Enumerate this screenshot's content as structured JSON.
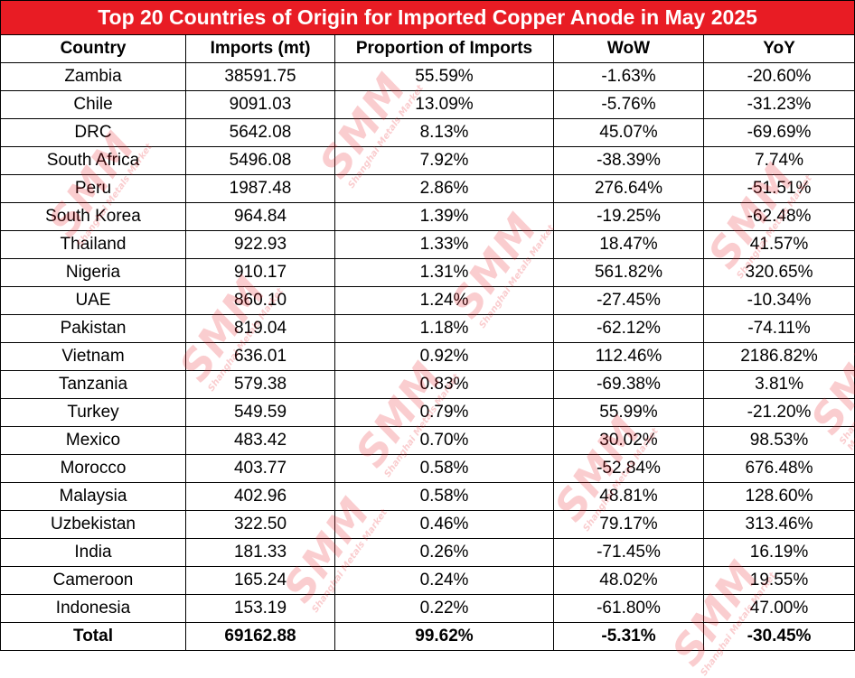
{
  "chart_data": {
    "type": "table",
    "title": "Top 20 Countries of Origin for Imported Copper Anode in May 2025",
    "columns": [
      "Country",
      "Imports (mt)",
      "Proportion of Imports",
      "WoW",
      "YoY"
    ],
    "rows": [
      [
        "Zambia",
        "38591.75",
        "55.59%",
        "-1.63%",
        "-20.60%"
      ],
      [
        "Chile",
        "9091.03",
        "13.09%",
        "-5.76%",
        "-31.23%"
      ],
      [
        "DRC",
        "5642.08",
        "8.13%",
        "45.07%",
        "-69.69%"
      ],
      [
        "South Africa",
        "5496.08",
        "7.92%",
        "-38.39%",
        "7.74%"
      ],
      [
        "Peru",
        "1987.48",
        "2.86%",
        "276.64%",
        "-51.51%"
      ],
      [
        "South Korea",
        "964.84",
        "1.39%",
        "-19.25%",
        "-62.48%"
      ],
      [
        "Thailand",
        "922.93",
        "1.33%",
        "18.47%",
        "41.57%"
      ],
      [
        "Nigeria",
        "910.17",
        "1.31%",
        "561.82%",
        "320.65%"
      ],
      [
        "UAE",
        "860.10",
        "1.24%",
        "-27.45%",
        "-10.34%"
      ],
      [
        "Pakistan",
        "819.04",
        "1.18%",
        "-62.12%",
        "-74.11%"
      ],
      [
        "Vietnam",
        "636.01",
        "0.92%",
        "112.46%",
        "2186.82%"
      ],
      [
        "Tanzania",
        "579.38",
        "0.83%",
        "-69.38%",
        "3.81%"
      ],
      [
        "Turkey",
        "549.59",
        "0.79%",
        "55.99%",
        "-21.20%"
      ],
      [
        "Mexico",
        "483.42",
        "0.70%",
        "30.02%",
        "98.53%"
      ],
      [
        "Morocco",
        "403.77",
        "0.58%",
        "-52.84%",
        "676.48%"
      ],
      [
        "Malaysia",
        "402.96",
        "0.58%",
        "48.81%",
        "128.60%"
      ],
      [
        "Uzbekistan",
        "322.50",
        "0.46%",
        "79.17%",
        "313.46%"
      ],
      [
        "India",
        "181.33",
        "0.26%",
        "-71.45%",
        "16.19%"
      ],
      [
        "Cameroon",
        "165.24",
        "0.24%",
        "48.02%",
        "19.55%"
      ],
      [
        "Indonesia",
        "153.19",
        "0.22%",
        "-61.80%",
        "47.00%"
      ]
    ],
    "total": [
      "Total",
      "69162.88",
      "99.62%",
      "-5.31%",
      "-30.45%"
    ]
  },
  "colors": {
    "title_bg": "#e81c24",
    "title_text": "#ffffff",
    "watermark": "#e81c24"
  },
  "watermark": {
    "main": "SMM",
    "sub": "Shanghai Metals Market"
  }
}
